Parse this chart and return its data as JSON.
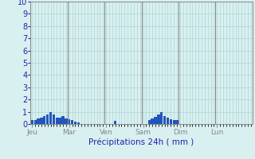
{
  "title": "Précipitations 24h ( mm )",
  "ylim": [
    0,
    10
  ],
  "yticks": [
    0,
    1,
    2,
    3,
    4,
    5,
    6,
    7,
    8,
    9,
    10
  ],
  "background_color": "#d8f0f0",
  "plot_bg_color": "#d8f0f0",
  "grid_color": "#b0d4d4",
  "bar_color": "#2255bb",
  "day_line_color": "#888888",
  "title_color": "#2222aa",
  "tick_color": "#2222aa",
  "day_labels": [
    "Jeu",
    "Mar",
    "Ven",
    "Sam",
    "Dim",
    "Lun"
  ],
  "day_label_color": "#2222aa",
  "n_bars": 72,
  "bar_values": [
    0.3,
    0.35,
    0.45,
    0.55,
    0.65,
    0.8,
    1.0,
    0.75,
    0.55,
    0.55,
    0.65,
    0.45,
    0.4,
    0.35,
    0.2,
    0.1,
    0.0,
    0.0,
    0.0,
    0.0,
    0.0,
    0.0,
    0.0,
    0.0,
    0.0,
    0.0,
    0.0,
    0.25,
    0.0,
    0.0,
    0.0,
    0.0,
    0.0,
    0.0,
    0.0,
    0.0,
    0.0,
    0.0,
    0.3,
    0.45,
    0.6,
    0.8,
    1.0,
    0.65,
    0.5,
    0.4,
    0.35,
    0.3,
    0.0,
    0.0,
    0.0,
    0.0,
    0.0,
    0.0,
    0.0,
    0.0,
    0.0,
    0.0,
    0.0,
    0.0,
    0.0,
    0.0,
    0.0,
    0.0,
    0.0,
    0.0,
    0.0,
    0.0,
    0.0,
    0.0,
    0.0,
    0.0
  ],
  "day_positions": [
    0,
    12,
    24,
    36,
    48,
    60
  ]
}
